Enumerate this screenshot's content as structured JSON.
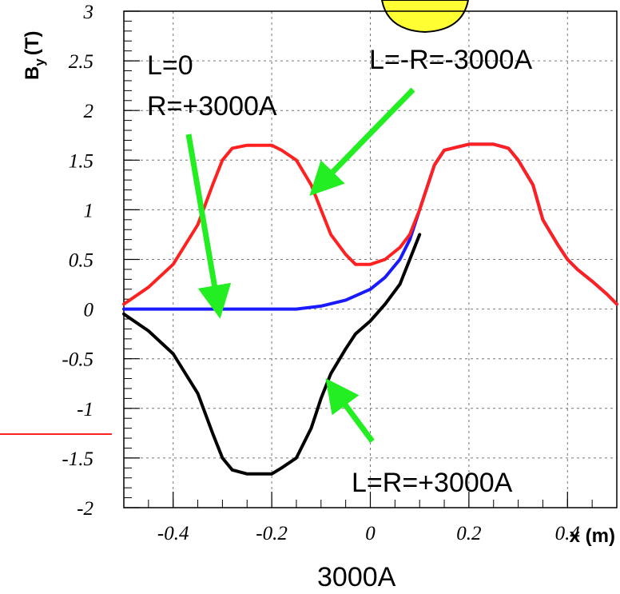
{
  "chart_data": {
    "type": "line",
    "xlabel": "x (m)",
    "ylabel_main": "B",
    "ylabel_sub": "y",
    "ylabel_unit": "(T)",
    "xlim": [
      -0.5,
      0.5
    ],
    "ylim": [
      -2,
      3
    ],
    "x_ticks": [
      "-0.4",
      "-0.2",
      "0",
      "0.2",
      "0.4"
    ],
    "y_ticks": [
      "-2",
      "-1.5",
      "-1",
      "-0.5",
      "0",
      "0.5",
      "1",
      "1.5",
      "2",
      "2.5",
      "3"
    ],
    "grid": true,
    "colors": {
      "red": "#ff2020",
      "blue": "#1a1aff",
      "black": "#000000",
      "arrow": "#22ee22",
      "badge": "#ffff33"
    },
    "series": [
      {
        "color": "red",
        "x": [
          -0.5,
          -0.45,
          -0.4,
          -0.35,
          -0.32,
          -0.3,
          -0.28,
          -0.25,
          -0.22,
          -0.2,
          -0.18,
          -0.15,
          -0.12,
          -0.1,
          -0.08,
          -0.05,
          -0.03,
          0.0,
          0.03,
          0.06,
          0.08,
          0.1,
          0.13,
          0.15,
          0.2,
          0.25,
          0.28,
          0.3,
          0.33,
          0.35,
          0.38,
          0.4,
          0.42,
          0.45,
          0.48,
          0.5
        ],
        "y": [
          0.05,
          0.22,
          0.45,
          0.85,
          1.25,
          1.5,
          1.62,
          1.65,
          1.65,
          1.65,
          1.6,
          1.5,
          1.25,
          1.0,
          0.75,
          0.55,
          0.45,
          0.45,
          0.5,
          0.62,
          0.75,
          1.0,
          1.45,
          1.6,
          1.66,
          1.66,
          1.62,
          1.5,
          1.25,
          0.9,
          0.65,
          0.5,
          0.4,
          0.28,
          0.15,
          0.05
        ]
      },
      {
        "color": "blue",
        "x": [
          -0.5,
          -0.4,
          -0.3,
          -0.2,
          -0.15,
          -0.1,
          -0.05,
          0.0,
          0.03,
          0.06,
          0.08,
          0.1,
          0.13,
          0.15,
          0.2,
          0.25,
          0.28,
          0.3,
          0.33,
          0.35,
          0.38,
          0.4,
          0.42,
          0.45,
          0.48,
          0.5
        ],
        "y": [
          0.0,
          0.0,
          0.0,
          0.0,
          0.0,
          0.03,
          0.09,
          0.2,
          0.32,
          0.5,
          0.7,
          1.0,
          1.45,
          1.6,
          1.66,
          1.66,
          1.62,
          1.5,
          1.25,
          0.9,
          0.65,
          0.5,
          0.4,
          0.28,
          0.15,
          0.05
        ]
      },
      {
        "color": "black",
        "x": [
          -0.5,
          -0.45,
          -0.4,
          -0.35,
          -0.32,
          -0.3,
          -0.28,
          -0.25,
          -0.22,
          -0.2,
          -0.18,
          -0.15,
          -0.12,
          -0.1,
          -0.08,
          -0.05,
          -0.03,
          0.0,
          0.03,
          0.06,
          0.08,
          0.1
        ],
        "y": [
          -0.05,
          -0.22,
          -0.45,
          -0.85,
          -1.25,
          -1.5,
          -1.62,
          -1.66,
          -1.66,
          -1.66,
          -1.6,
          -1.5,
          -1.2,
          -0.9,
          -0.65,
          -0.4,
          -0.25,
          -0.12,
          0.05,
          0.25,
          0.5,
          0.75
        ]
      }
    ],
    "annotations": [
      {
        "line1": "L=0",
        "line2": "R=+3000A"
      },
      {
        "line1": "L=-R=-3000A"
      },
      {
        "line1": "L=R=+3000A"
      },
      {
        "line1": "3000A"
      }
    ]
  }
}
